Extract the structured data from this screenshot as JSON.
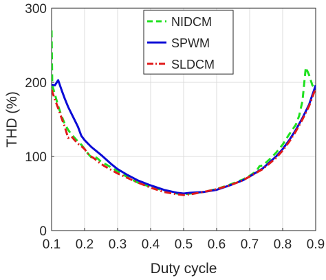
{
  "chart_data": {
    "type": "line",
    "title": "",
    "xlabel": "Duty cycle",
    "ylabel": "THD (%)",
    "xlim": [
      0.1,
      0.9
    ],
    "ylim": [
      0,
      300
    ],
    "x_ticks": [
      "0.1",
      "0.2",
      "0.3",
      "0.4",
      "0.5",
      "0.6",
      "0.7",
      "0.8",
      "0.9"
    ],
    "y_ticks": [
      "0",
      "100",
      "200",
      "300"
    ],
    "grid": true,
    "legend_position": "top-right",
    "series": [
      {
        "name": "NIDCM",
        "color": "#1fe01f",
        "style": "dashed",
        "x": [
          0.1,
          0.102,
          0.11,
          0.12,
          0.13,
          0.14,
          0.15,
          0.16,
          0.17,
          0.18,
          0.19,
          0.2,
          0.21,
          0.22,
          0.23,
          0.24,
          0.25,
          0.27,
          0.3,
          0.33,
          0.36,
          0.4,
          0.44,
          0.48,
          0.5,
          0.52,
          0.56,
          0.6,
          0.64,
          0.68,
          0.7,
          0.72,
          0.73,
          0.74,
          0.76,
          0.78,
          0.8,
          0.82,
          0.84,
          0.85,
          0.86,
          0.87,
          0.88,
          0.89,
          0.9
        ],
        "y": [
          270,
          196,
          184,
          168,
          155,
          144,
          136,
          130,
          125,
          120,
          116,
          110,
          104,
          99,
          100,
          97,
          93,
          88,
          80,
          72,
          65,
          59,
          54,
          50,
          49,
          50,
          52,
          56,
          62,
          69,
          74,
          80,
          87,
          88,
          96,
          105,
          116,
          130,
          143,
          155,
          175,
          220,
          210,
          196,
          192
        ]
      },
      {
        "name": "SPWM",
        "color": "#0b0bd6",
        "style": "solid",
        "x": [
          0.1,
          0.11,
          0.12,
          0.13,
          0.14,
          0.15,
          0.16,
          0.17,
          0.18,
          0.19,
          0.2,
          0.22,
          0.25,
          0.28,
          0.3,
          0.33,
          0.36,
          0.4,
          0.44,
          0.48,
          0.5,
          0.52,
          0.56,
          0.6,
          0.64,
          0.68,
          0.7,
          0.74,
          0.78,
          0.8,
          0.82,
          0.84,
          0.86,
          0.88,
          0.9
        ],
        "y": [
          197,
          196,
          203,
          190,
          178,
          167,
          158,
          149,
          140,
          128,
          122,
          113,
          102,
          90,
          83,
          75,
          68,
          61,
          55,
          51,
          50,
          51,
          52,
          55,
          61,
          68,
          73,
          84,
          100,
          110,
          122,
          136,
          152,
          170,
          196
        ]
      },
      {
        "name": "SLDCM",
        "color": "#e11b1b",
        "style": "dashdot",
        "x": [
          0.1,
          0.11,
          0.12,
          0.13,
          0.14,
          0.15,
          0.16,
          0.17,
          0.18,
          0.19,
          0.2,
          0.21,
          0.22,
          0.23,
          0.24,
          0.26,
          0.28,
          0.3,
          0.33,
          0.36,
          0.4,
          0.44,
          0.48,
          0.5,
          0.52,
          0.56,
          0.6,
          0.64,
          0.68,
          0.7,
          0.74,
          0.78,
          0.8,
          0.82,
          0.84,
          0.86,
          0.88,
          0.9
        ],
        "y": [
          190,
          177,
          165,
          152,
          140,
          125,
          127,
          122,
          117,
          114,
          110,
          104,
          100,
          97,
          93,
          87,
          82,
          77,
          71,
          65,
          58,
          52,
          49,
          48,
          49,
          52,
          56,
          61,
          68,
          73,
          83,
          98,
          108,
          120,
          134,
          150,
          168,
          192
        ]
      }
    ]
  }
}
